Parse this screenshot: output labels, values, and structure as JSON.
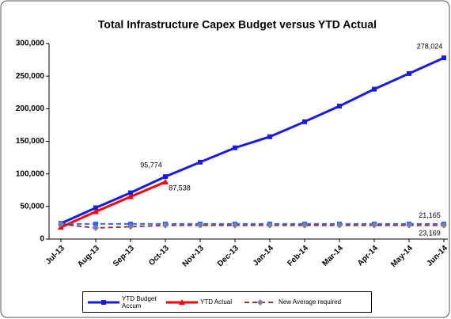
{
  "chart_data": {
    "type": "line",
    "title": "Total Infrastructure Capex Budget versus YTD Actual",
    "categories": [
      "Jul-13",
      "Aug-13",
      "Sep-13",
      "Oct-13",
      "Nov-13",
      "Dec-13",
      "Jan-14",
      "Feb-14",
      "Mar-14",
      "Apr-14",
      "May-14",
      "Jun-14"
    ],
    "ylim": [
      0,
      300000
    ],
    "yticks": [
      0,
      {
        "value": 50000,
        "label": "50,000"
      },
      {
        "value": 100000,
        "label": "100,000"
      },
      {
        "value": 150000,
        "label": "150,000"
      },
      {
        "value": 200000,
        "label": "200,000"
      },
      {
        "value": 250000,
        "label": "250,000"
      },
      {
        "value": 300000,
        "label": "300,000"
      }
    ],
    "grid": false,
    "legend": "bottom",
    "series": [
      {
        "name": "YTD Budget Accum",
        "color": "#1a1ae6",
        "marker": "square",
        "dashed": false,
        "values": [
          24000,
          48000,
          71000,
          95774,
          118000,
          140000,
          157000,
          180000,
          204000,
          230000,
          254000,
          278024
        ],
        "value_labels": [
          null,
          null,
          null,
          "95,774",
          null,
          null,
          null,
          null,
          null,
          null,
          null,
          "278,024"
        ]
      },
      {
        "name": "YTD Actual",
        "color": "#ff0000",
        "marker": "triangle",
        "dashed": false,
        "values": [
          18000,
          42000,
          65000,
          87538,
          null,
          null,
          null,
          null,
          null,
          null,
          null,
          null
        ],
        "value_labels": [
          null,
          null,
          null,
          "87,538",
          null,
          null,
          null,
          null,
          null,
          null,
          null,
          null
        ]
      },
      {
        "color": "#3366ff",
        "marker": "square",
        "dashed": true,
        "values": [
          23169,
          23169,
          23169,
          23169,
          23169,
          23169,
          23169,
          23169,
          23169,
          23169,
          23169,
          23169
        ],
        "value_labels": [
          null,
          null,
          null,
          null,
          null,
          null,
          null,
          null,
          null,
          null,
          null,
          "23,169"
        ]
      },
      {
        "name": "New Average required",
        "color": "#993333",
        "marker": "diamond",
        "marker_color": "#7f7f9f",
        "dashed": true,
        "values": [
          23000,
          17000,
          19000,
          21000,
          21165,
          21165,
          21165,
          21165,
          21165,
          21165,
          21165,
          21165
        ],
        "value_labels": [
          null,
          null,
          null,
          null,
          null,
          null,
          null,
          null,
          null,
          null,
          null,
          "21,165"
        ]
      }
    ]
  }
}
